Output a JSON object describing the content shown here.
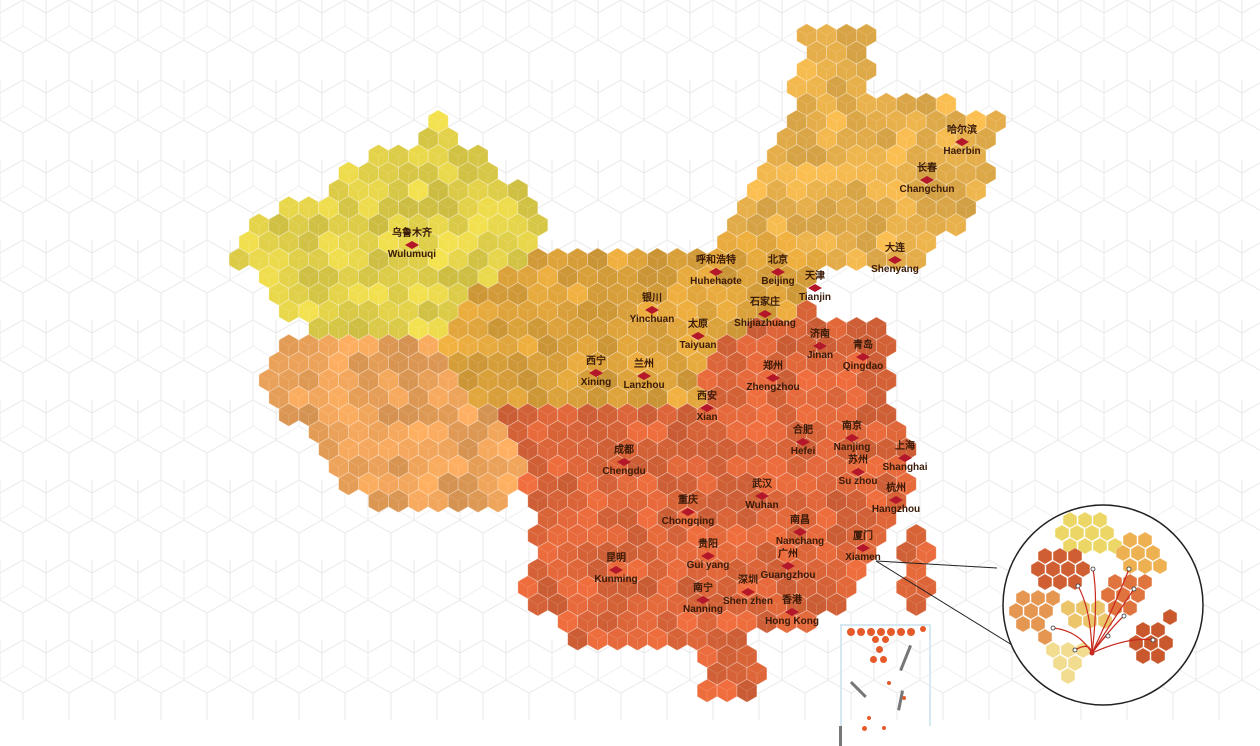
{
  "colors": {
    "background": "#ffffff",
    "background_grid": "#e6e6e6",
    "northwest": "#e3d24a",
    "tibet": "#eda35a",
    "north": "#e0a53c",
    "northeast": "#eab24c",
    "southeast": "#e0673a",
    "marker": "#b4162a",
    "label": "#3a1a08"
  },
  "cities": [
    {
      "cn": "乌鲁木齐",
      "en": "Wulumuqi"
    },
    {
      "cn": "哈尔滨",
      "en": "Haerbin"
    },
    {
      "cn": "长春",
      "en": "Changchun"
    },
    {
      "cn": "大连",
      "en": "Shenyang"
    },
    {
      "cn": "呼和浩特",
      "en": "Huhehaote"
    },
    {
      "cn": "北京",
      "en": "Beijing"
    },
    {
      "cn": "天津",
      "en": "Tianjin"
    },
    {
      "cn": "银川",
      "en": "Yinchuan"
    },
    {
      "cn": "石家庄",
      "en": "Shijiazhuang"
    },
    {
      "cn": "太原",
      "en": "Taiyuan"
    },
    {
      "cn": "济南",
      "en": "Jinan"
    },
    {
      "cn": "青岛",
      "en": "Qingdao"
    },
    {
      "cn": "西宁",
      "en": "Xining"
    },
    {
      "cn": "兰州",
      "en": "Lanzhou"
    },
    {
      "cn": "郑州",
      "en": "Zhengzhou"
    },
    {
      "cn": "西安",
      "en": "Xian"
    },
    {
      "cn": "合肥",
      "en": "Hefei"
    },
    {
      "cn": "南京",
      "en": "Nanjing"
    },
    {
      "cn": "苏州",
      "en": "Su zhou"
    },
    {
      "cn": "上海",
      "en": "Shanghai"
    },
    {
      "cn": "杭州",
      "en": "Hangzhou"
    },
    {
      "cn": "成都",
      "en": "Chengdu"
    },
    {
      "cn": "武汉",
      "en": "Wuhan"
    },
    {
      "cn": "重庆",
      "en": "Chongqing"
    },
    {
      "cn": "南昌",
      "en": "Nanchang"
    },
    {
      "cn": "厦门",
      "en": "Xiamen"
    },
    {
      "cn": "贵阳",
      "en": "Gui yang"
    },
    {
      "cn": "昆明",
      "en": "Kunming"
    },
    {
      "cn": "广州",
      "en": "Guangzhou"
    },
    {
      "cn": "深圳",
      "en": "Shen zhen"
    },
    {
      "cn": "南宁",
      "en": "Nanning"
    },
    {
      "cn": "香港",
      "en": "Hong Kong"
    }
  ],
  "inset": {
    "focus_city": "厦门"
  }
}
